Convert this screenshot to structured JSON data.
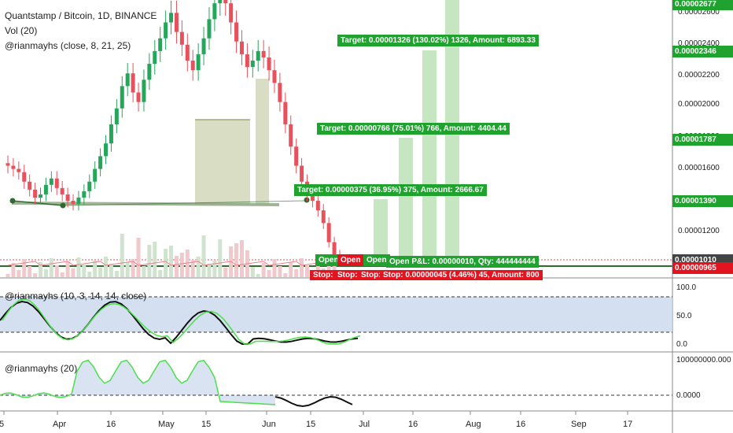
{
  "header": {
    "symbol_title": "Quantstamp / Bitcoin, 1D, BINANCE",
    "volume_label": "Vol (20)",
    "ma_label": "@rianmayhs (close, 8, 21, 25)"
  },
  "price_axis": {
    "ticks": [
      "0.00002600",
      "0.00002400",
      "0.00002200",
      "0.00002000",
      "0.00001800",
      "0.00001600",
      "0.00001400",
      "0.00001200",
      "0.00001000"
    ],
    "badges": [
      {
        "text": "0.00002677",
        "color": "#1fa32e"
      },
      {
        "text": "0.00002346",
        "color": "#1fa32e"
      },
      {
        "text": "0.00001787",
        "color": "#1fa32e"
      },
      {
        "text": "0.00001390",
        "color": "#1fa32e"
      },
      {
        "text": "0.00001010",
        "color": "#444444"
      },
      {
        "text": "0.00000965",
        "color": "#e2141f"
      }
    ]
  },
  "targets": [
    {
      "text": "Target: 0.00001326 (130.02%) 1326, Amount: 6893.33"
    },
    {
      "text": "Target: 0.00000766 (75.01%) 766, Amount: 4404.44"
    },
    {
      "text": "Target: 0.00000375 (36.95%) 375, Amount: 2666.67"
    }
  ],
  "trade_labels": {
    "open_1": "Open",
    "open_2": "Open P",
    "open_3": "Open",
    "open_pl": "Open P&L: 0.00000010, Qty: 444444444",
    "stop_1": "Stop: (",
    "stop_2": "Stop: (",
    "stop_3": "Stop: (",
    "stop_main": "Stop: 0.00000045 (4.46%) 45, Amount: 800"
  },
  "stoch_panel": {
    "label": "@rianmayhs (10, 3, 14, 14, close)",
    "ticks": [
      "100.0",
      "50.0",
      "0.0"
    ]
  },
  "osc_panel": {
    "label": "@rianmayhs (20)",
    "ticks": [
      "100000000.000",
      "0.0000"
    ]
  },
  "time_axis": {
    "ticks": [
      "5",
      "Apr",
      "16",
      "May",
      "15",
      "Jun",
      "15",
      "Jul",
      "16",
      "Aug",
      "16",
      "Sep",
      "17"
    ]
  },
  "colors": {
    "up": "#26a65b",
    "down": "#e8505b",
    "target_green": "#1fa32e",
    "stop_red": "#e2141f"
  },
  "chart_data": {
    "type": "candlestick",
    "title": "Quantstamp / Bitcoin, 1D, BINANCE",
    "price_range": [
      9.6e-06,
      2.7e-05
    ],
    "close_path": [
      1.6e-05,
      1.58e-05,
      1.56e-05,
      1.5e-05,
      1.45e-05,
      1.4e-05,
      1.42e-05,
      1.48e-05,
      1.52e-05,
      1.46e-05,
      1.42e-05,
      1.38e-05,
      1.36e-05,
      1.4e-05,
      1.44e-05,
      1.5e-05,
      1.58e-05,
      1.66e-05,
      1.74e-05,
      1.86e-05,
      1.96e-05,
      2.1e-05,
      2.18e-05,
      2.06e-05,
      2e-05,
      2.14e-05,
      2.24e-05,
      2.32e-05,
      2.4e-05,
      2.5e-05,
      2.56e-05,
      2.44e-05,
      2.36e-05,
      2.26e-05,
      2.2e-05,
      2.3e-05,
      2.4e-05,
      2.52e-05,
      2.62e-05,
      2.7e-05,
      2.62e-05,
      2.5e-05,
      2.38e-05,
      2.3e-05,
      2.22e-05,
      2.26e-05,
      2.32e-05,
      2.28e-05,
      2.2e-05,
      2.12e-05,
      2e-05,
      1.86e-05,
      1.72e-05,
      1.6e-05,
      1.5e-05,
      1.42e-05,
      1.38e-05,
      1.32e-05,
      1.24e-05,
      1.12e-05,
      1.04e-05,
      1e-05
    ]
  }
}
